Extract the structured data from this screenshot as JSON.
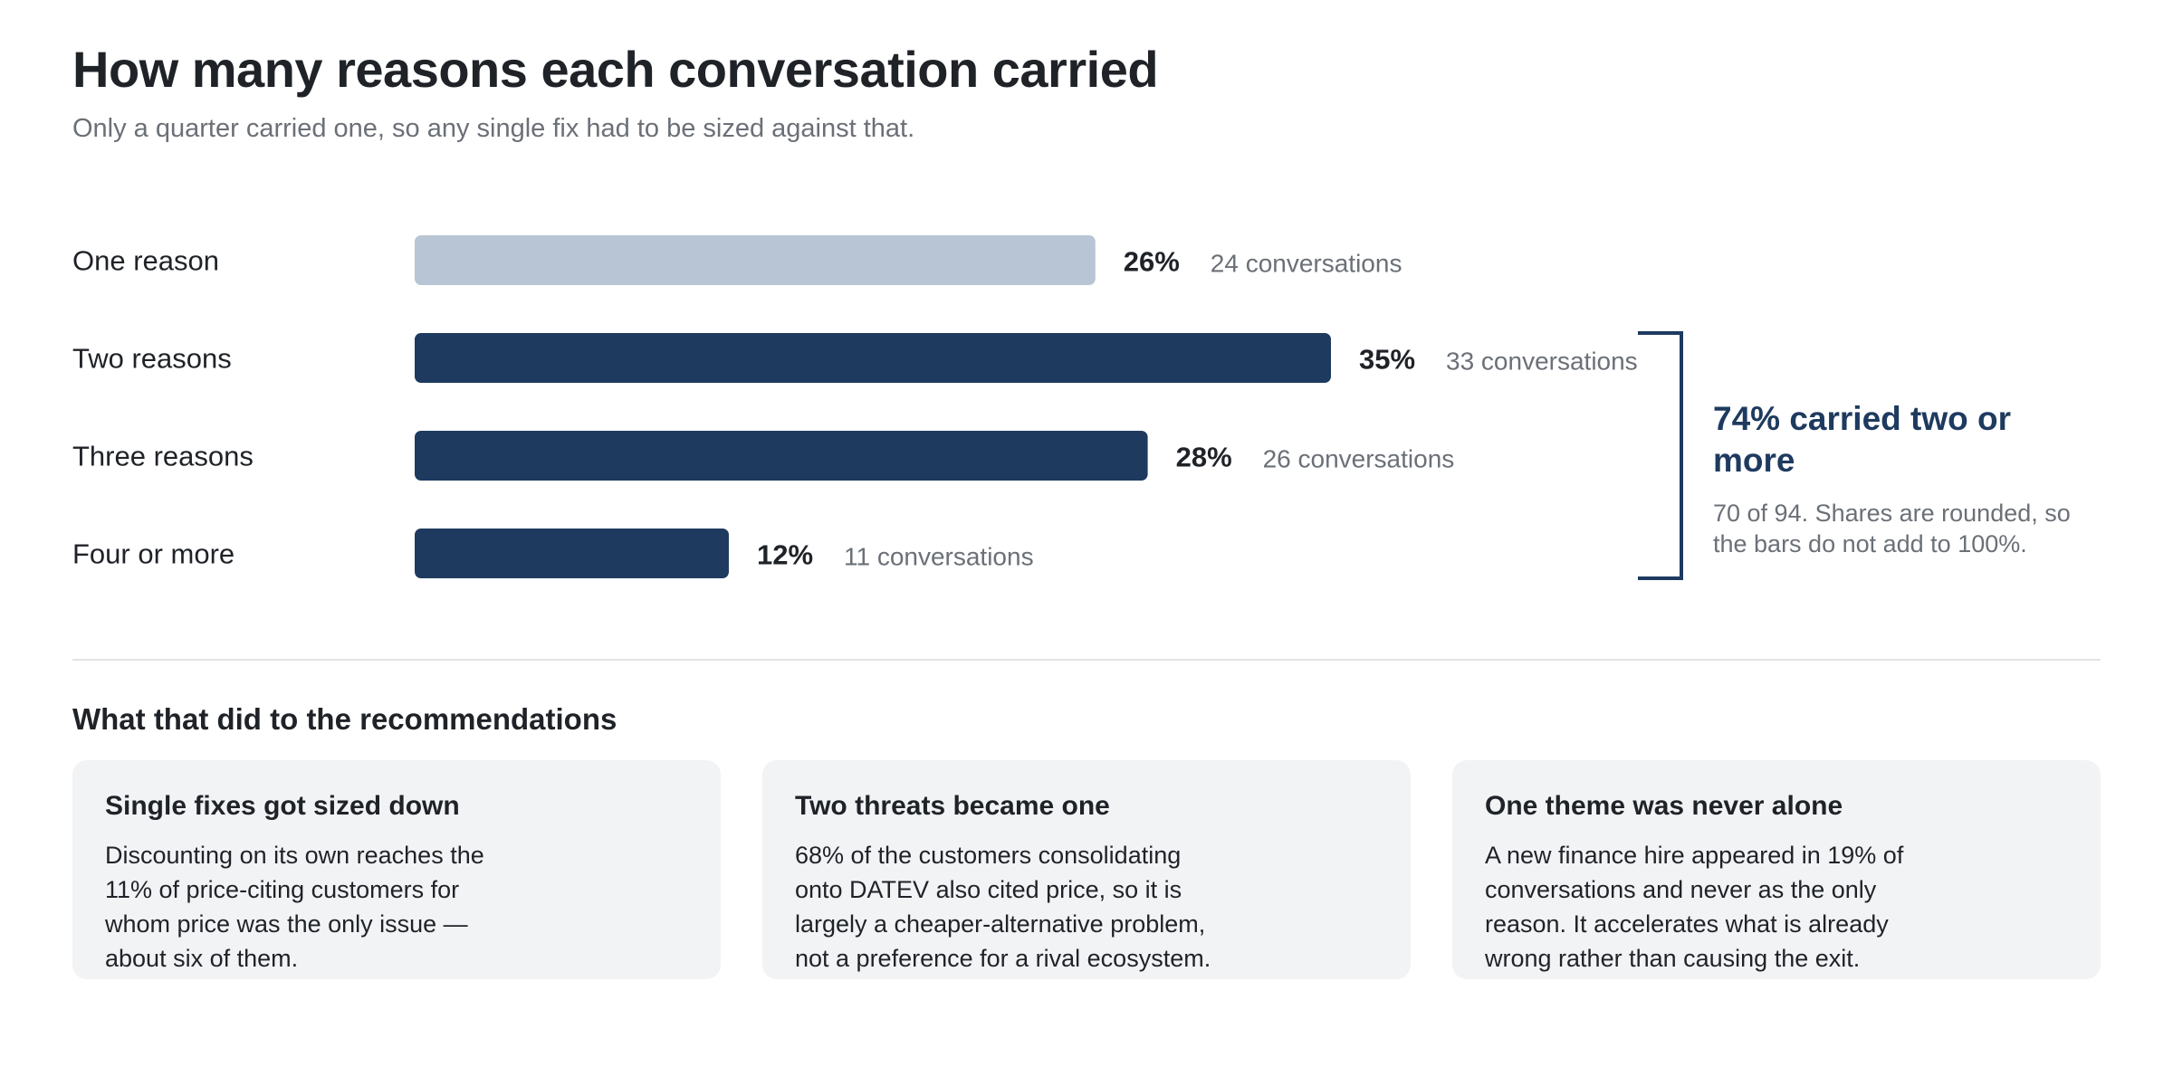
{
  "header": {
    "title": "How many reasons each conversation carried",
    "subtitle": "Only a quarter carried one, so any single fix had to be sized against that."
  },
  "chart_data": {
    "type": "bar",
    "orientation": "horizontal",
    "title": "How many reasons each conversation carried",
    "categories": [
      "One reason",
      "Two reasons",
      "Three reasons",
      "Four or more"
    ],
    "values": [
      26,
      35,
      28,
      12
    ],
    "value_labels": [
      "26%",
      "35%",
      "28%",
      "12%"
    ],
    "counts": [
      24,
      33,
      26,
      11
    ],
    "count_labels": [
      "24 conversations",
      "33 conversations",
      "26 conversations",
      "11 conversations"
    ],
    "unit": "%",
    "xlim": [
      0,
      35
    ],
    "grid": false,
    "highlight": [
      false,
      true,
      true,
      true
    ],
    "colors": {
      "muted": "#b8c5d4",
      "accent": "#1e3a5f"
    }
  },
  "callout": {
    "bracket_covers": [
      "Two reasons",
      "Three reasons",
      "Four or more"
    ],
    "headline": "74% carried two or more",
    "note": "70 of 94. Shares are rounded, so the bars do not add to 100%."
  },
  "section": {
    "heading": "What that did to the recommendations"
  },
  "cards": [
    {
      "title": "Single fixes got sized down",
      "body": "Discounting on its own reaches the 11% of price-citing customers for whom price was the only issue — about six of them."
    },
    {
      "title": "Two threats became one",
      "body": "68% of the customers consolidating onto DATEV also cited price, so it is largely a cheaper-alternative problem, not a preference for a rival ecosystem."
    },
    {
      "title": "One theme was never alone",
      "body": "A new finance hire appeared in 19% of conversations and never as the only reason. It accelerates what is already wrong rather than causing the exit."
    }
  ]
}
